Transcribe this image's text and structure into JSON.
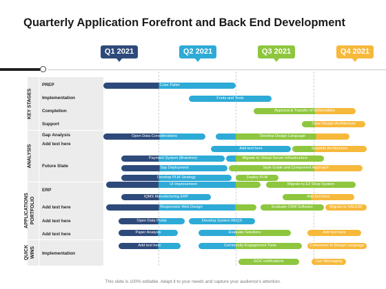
{
  "title": "Quarterly Application Forefront and Back End Development",
  "quarters": [
    {
      "label": "Q1 2021",
      "color": "#2e4a7a"
    },
    {
      "label": "Q2 2021",
      "color": "#2eaad6"
    },
    {
      "label": "Q3 2021",
      "color": "#8ec63f"
    },
    {
      "label": "Q4 2021",
      "color": "#f6b93b"
    }
  ],
  "stages": [
    {
      "label": "KEY STAGES"
    },
    {
      "label": "ANALYSIS"
    },
    {
      "label": "APPLICATIONS PORTFOLIO"
    },
    {
      "label": "QUICK WINS"
    }
  ],
  "rows": [
    {
      "label": "PREP"
    },
    {
      "label": "Implementation"
    },
    {
      "label": "Completion"
    },
    {
      "label": "Support"
    },
    {
      "label": "Gap Analysis"
    },
    {
      "label": "Add text here"
    },
    {
      "label": "Future State"
    },
    {
      "label": "ERP"
    },
    {
      "label": "Add text here"
    },
    {
      "label": "Add text here"
    },
    {
      "label": "Add text here"
    },
    {
      "label": "Implementation"
    }
  ],
  "bars": [
    {
      "text": "Color Pallet",
      "color": "dark-to-blue"
    },
    {
      "text": "Fonts and Texts",
      "color": "blue"
    },
    {
      "text": "Approval & Transfer of Deliverables",
      "color": "green-to-yellow"
    },
    {
      "text": "Clear Design Architecture",
      "color": "green-to-yellow"
    },
    {
      "text": "Open Data Considerations",
      "color": "dark-to-blue"
    },
    {
      "text": "Develop Design Language",
      "color": "blue-green-yellow"
    },
    {
      "text": "Add text here",
      "color": "blue"
    },
    {
      "text": "Scalable Architecture",
      "color": "green-to-yellow"
    },
    {
      "text": "Payment System (Braintree)",
      "color": "dark-to-blue"
    },
    {
      "text": "Migrate to Virtual Server Infrastructure",
      "color": "blue-to-green"
    },
    {
      "text": "Sap Deployment",
      "color": "dark-to-blue"
    },
    {
      "text": "Style Guide and Component Approach",
      "color": "green-to-yellow"
    },
    {
      "text": "Develop PLM Strategy",
      "color": "dark-to-blue"
    },
    {
      "text": "Deploy PLM",
      "color": "green"
    },
    {
      "text": "UI Improvement",
      "color": "dark-to-blue"
    },
    {
      "text": "Migrate to E2 Shop System",
      "color": "green"
    },
    {
      "text": "IQMS Manufacturing ERP",
      "color": "dark-to-blue"
    },
    {
      "text": "Add text here",
      "color": "green-to-yellow"
    },
    {
      "text": "Responsive Web Design",
      "color": "dark-to-blue"
    },
    {
      "text": "Evaluate CRM Software",
      "color": "green"
    },
    {
      "text": "Migrate to SALESF",
      "color": "yellow"
    },
    {
      "text": "Open Data Portal",
      "color": "dark-to-blue"
    },
    {
      "text": "Develop System REQS",
      "color": "blue"
    },
    {
      "text": "Paper Analysis",
      "color": "dark-to-blue"
    },
    {
      "text": "Evaluate Solutions",
      "color": "blue-to-green"
    },
    {
      "text": "Add text here",
      "color": "yellow"
    },
    {
      "text": "Add text here",
      "color": "dark-to-blue"
    },
    {
      "text": "Community Engagement Tools",
      "color": "blue-to-green"
    },
    {
      "text": "Coherence in Design Language",
      "color": "yellow"
    },
    {
      "text": "EOC notifications",
      "color": "green"
    },
    {
      "text": "Live Messaging",
      "color": "yellow"
    }
  ],
  "footer": "This slide is 100% editable. Adapt it to your needs and capture your audience's attention."
}
